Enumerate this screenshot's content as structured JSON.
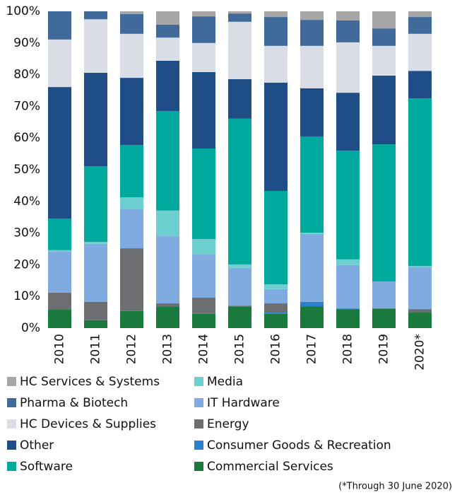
{
  "chart_data": {
    "type": "stacked_bar",
    "categories": [
      "2010",
      "2011",
      "2012",
      "2013",
      "2014",
      "2015",
      "2016",
      "2017",
      "2018",
      "2019",
      "2020*"
    ],
    "series": [
      {
        "name": "Commercial Services",
        "color": "#1a7a3e",
        "values": [
          5.8,
          2.5,
          5.4,
          6.7,
          4.5,
          6.7,
          4.5,
          6.9,
          6.0,
          6.2,
          4.9
        ]
      },
      {
        "name": "Consumer Goods & Recreation",
        "color": "#2a7fcf",
        "values": [
          0,
          0,
          0,
          0,
          0.2,
          0,
          0.4,
          1.4,
          0.2,
          0,
          0
        ]
      },
      {
        "name": "Energy",
        "color": "#6d6e71",
        "values": [
          5.4,
          5.8,
          19.8,
          1.1,
          4.9,
          0.4,
          2.9,
          0,
          0,
          0,
          1.1
        ]
      },
      {
        "name": "IT Hardware",
        "color": "#7fabe0",
        "values": [
          12.9,
          18.3,
          12.5,
          21.2,
          13.6,
          11.9,
          4.5,
          21.4,
          13.7,
          8.5,
          13.2
        ]
      },
      {
        "name": "Media",
        "color": "#6dcfcf",
        "values": [
          0.5,
          0.6,
          3.6,
          8.1,
          4.9,
          1.1,
          1.5,
          0.4,
          1.8,
          0,
          0.4
        ]
      },
      {
        "name": "Software",
        "color": "#00a99d",
        "values": [
          10.0,
          23.9,
          16.5,
          31.4,
          28.6,
          46.0,
          29.5,
          30.4,
          34.3,
          43.3,
          52.9
        ]
      },
      {
        "name": "Other",
        "color": "#1f4e87",
        "values": [
          41.5,
          29.5,
          21.2,
          15.9,
          24.1,
          12.5,
          34.2,
          15.2,
          18.3,
          21.7,
          8.7
        ]
      },
      {
        "name": "HC Devices & Supplies",
        "color": "#d9dde6",
        "values": [
          15.0,
          16.9,
          13.9,
          7.3,
          9.2,
          18.1,
          11.6,
          13.4,
          15.9,
          9.4,
          11.7
        ]
      },
      {
        "name": "Pharma & Biotech",
        "color": "#3f6a9a",
        "values": [
          8.9,
          2.5,
          6.2,
          4.1,
          8.4,
          2.6,
          9.1,
          8.2,
          6.9,
          5.5,
          5.3
        ]
      },
      {
        "name": "HC Services & Systems",
        "color": "#a6a6a6",
        "values": [
          0,
          0,
          0.9,
          4.2,
          1.6,
          0.7,
          1.8,
          2.7,
          2.9,
          5.4,
          1.8
        ]
      }
    ],
    "ylim": [
      0,
      100
    ],
    "yticks": [
      {
        "value": 0,
        "label": "0%"
      },
      {
        "value": 10,
        "label": "10%"
      },
      {
        "value": 20,
        "label": "20%"
      },
      {
        "value": 30,
        "label": "30%"
      },
      {
        "value": 40,
        "label": "40%"
      },
      {
        "value": 50,
        "label": "50%"
      },
      {
        "value": 60,
        "label": "60%"
      },
      {
        "value": 70,
        "label": "70%"
      },
      {
        "value": 80,
        "label": "80%"
      },
      {
        "value": 90,
        "label": "90%"
      },
      {
        "value": 100,
        "label": "100%"
      }
    ],
    "footnote": "(*Through 30 June 2020)"
  }
}
